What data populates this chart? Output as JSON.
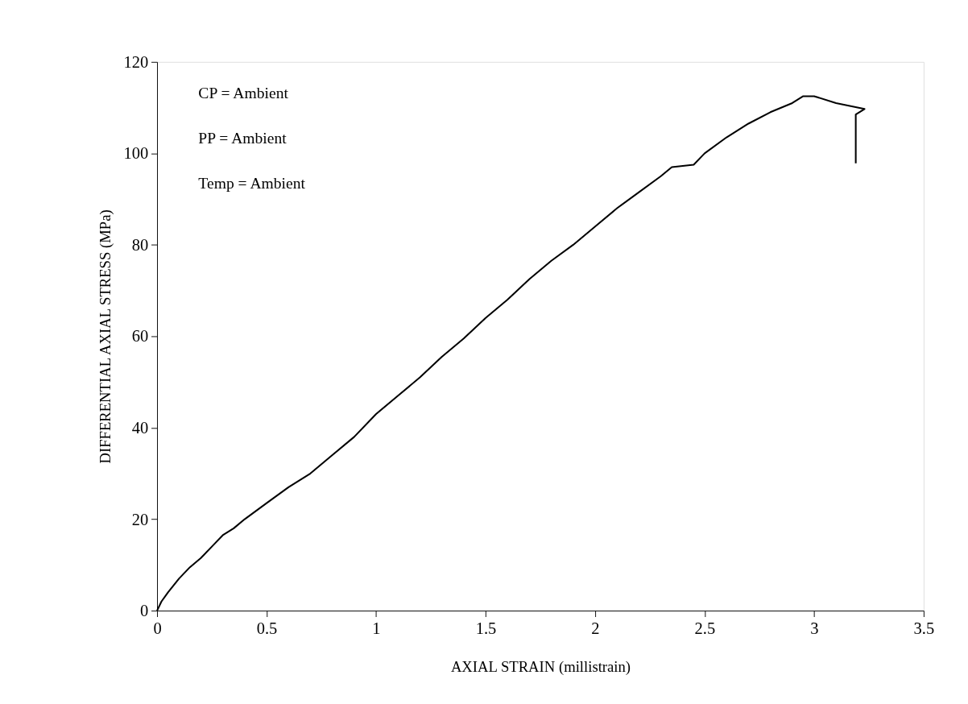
{
  "chart_data": {
    "type": "line",
    "xlabel": "AXIAL STRAIN (millistrain)",
    "ylabel": "DIFFERENTIAL AXIAL STRESS (MPa)",
    "annotations": [
      "CP = Ambient",
      "PP = Ambient",
      "Temp = Ambient"
    ],
    "x": [
      0,
      0.02,
      0.05,
      0.1,
      0.15,
      0.2,
      0.25,
      0.3,
      0.35,
      0.4,
      0.5,
      0.6,
      0.7,
      0.8,
      0.9,
      1.0,
      1.1,
      1.2,
      1.3,
      1.4,
      1.5,
      1.6,
      1.7,
      1.8,
      1.9,
      2.0,
      2.1,
      2.2,
      2.3,
      2.35,
      2.45,
      2.5,
      2.6,
      2.7,
      2.8,
      2.9,
      2.95,
      3.0,
      3.1,
      3.23,
      3.19,
      3.19
    ],
    "series": [
      {
        "color": "#000000",
        "values": [
          0,
          2,
          4,
          7,
          9.5,
          11.5,
          14,
          16.5,
          18,
          20,
          23.5,
          27,
          30,
          34,
          38,
          43,
          47,
          51,
          55.5,
          59.5,
          64,
          68,
          72.5,
          76.5,
          80,
          84,
          88,
          91.5,
          95,
          97,
          97.5,
          100,
          103.5,
          106.5,
          109,
          111,
          112.5,
          112.5,
          111,
          109.7,
          108.5,
          97.8
        ]
      }
    ],
    "xlim": [
      0,
      3.5
    ],
    "xticks": [
      0,
      0.5,
      1,
      1.5,
      2,
      2.5,
      3,
      3.5
    ],
    "ylim": [
      0,
      120
    ],
    "yticks": [
      0,
      20,
      40,
      60,
      80,
      100,
      120
    ],
    "grid": false,
    "legend": false,
    "marker": "none",
    "line_style": "solid"
  }
}
